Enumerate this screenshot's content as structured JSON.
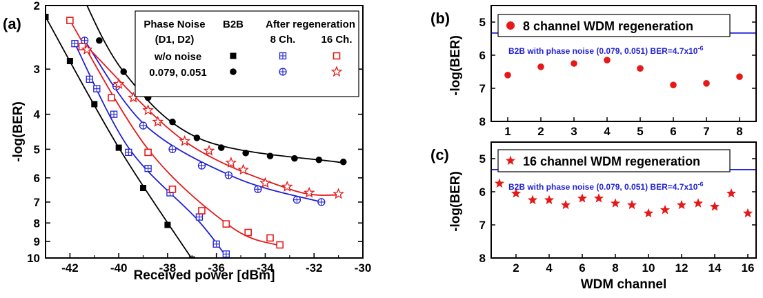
{
  "chart_data": [
    {
      "panel": "(a)",
      "type": "line",
      "xlabel": "Received power [dBm]",
      "ylabel": "-log(BER)",
      "xlim": [
        -43,
        -30
      ],
      "ylim": [
        2,
        10
      ],
      "yscale": "-log(-log)",
      "xticks": [
        "-42",
        "-40",
        "-38",
        "-36",
        "-34",
        "-32",
        "-30"
      ],
      "yticks": [
        "2",
        "3",
        "4",
        "5",
        "6",
        "7",
        "8",
        "9",
        "10"
      ],
      "legend": {
        "header_col1": "Phase Noise",
        "header_col1_sub": "(D1, D2)",
        "header_col2": "B2B",
        "header_col3": "After regeneration",
        "sub_col3a": "8 Ch.",
        "sub_col3b": "16 Ch.",
        "row1_label": "w/o noise",
        "row2_label": "0.079, 0.051"
      },
      "series": [
        {
          "key": "b2b_nonoise",
          "color": "#000000",
          "marker": "square",
          "x": [
            -43.0,
            -42.0,
            -41.0,
            -40.0,
            -39.0,
            -38.0,
            -37.0
          ],
          "y": [
            2.15,
            2.85,
            3.75,
            4.95,
            6.4,
            8.1,
            10.1
          ],
          "fit_x": [
            -43.0,
            -40.0,
            -36.9
          ],
          "fit_y": [
            2.15,
            4.95,
            10.3
          ]
        },
        {
          "key": "b2b_noise",
          "color": "#000000",
          "marker": "circle",
          "x": [
            -40.8,
            -39.8,
            -38.8,
            -37.8,
            -36.8,
            -35.8,
            -34.8,
            -33.8,
            -32.8,
            -31.8,
            -30.8
          ],
          "y": [
            2.5,
            3.05,
            3.6,
            4.2,
            4.65,
            4.95,
            5.12,
            5.22,
            5.3,
            5.35,
            5.42
          ],
          "fit_x": [
            -41.7,
            -39.8,
            -36.6,
            -30.9
          ],
          "fit_y": [
            1.75,
            3.05,
            4.7,
            5.44
          ]
        },
        {
          "key": "regen8_nonoise",
          "color": "#1f1fd6",
          "marker": "squareplus",
          "x": [
            -41.8,
            -41.2,
            -40.9,
            -40.2,
            -39.6,
            -38.8,
            -37.9,
            -36.7,
            -36.0,
            -35.6
          ],
          "y": [
            2.55,
            3.2,
            3.4,
            4.0,
            5.1,
            5.65,
            6.6,
            7.7,
            9.15,
            9.75
          ],
          "fit_x": [
            -41.8,
            -39.6,
            -36.8,
            -35.6
          ],
          "fit_y": [
            2.55,
            4.95,
            7.8,
            9.9
          ]
        },
        {
          "key": "regen8_noise",
          "color": "#1f1fd6",
          "marker": "circleplus",
          "x": [
            -41.4,
            -40.1,
            -39.0,
            -37.8,
            -36.6,
            -35.5,
            -34.3,
            -32.7,
            -31.7
          ],
          "y": [
            2.5,
            3.35,
            4.3,
            5.0,
            5.55,
            5.9,
            6.45,
            6.9,
            7.0
          ],
          "fit_x": [
            -41.4,
            -38.9,
            -35.2,
            -31.7
          ],
          "fit_y": [
            2.5,
            4.3,
            6.0,
            7.0
          ]
        },
        {
          "key": "regen16_nonoise",
          "color": "#e61919",
          "marker": "squareopen",
          "x": [
            -42.0,
            -41.5,
            -40.3,
            -38.8,
            -37.8,
            -36.6,
            -35.6,
            -34.7,
            -33.8,
            -33.4
          ],
          "y": [
            2.2,
            2.6,
            3.6,
            5.1,
            6.45,
            7.4,
            8.05,
            8.5,
            8.8,
            9.2
          ],
          "fit_x": [
            -42.0,
            -38.8,
            -35.4,
            -33.4
          ],
          "fit_y": [
            2.2,
            5.0,
            8.2,
            9.25
          ]
        },
        {
          "key": "regen16_noise",
          "color": "#e61919",
          "marker": "star",
          "x": [
            -41.3,
            -40.0,
            -39.4,
            -38.8,
            -38.4,
            -37.3,
            -36.3,
            -35.4,
            -34.9,
            -34.0,
            -33.1,
            -32.2,
            -31.0
          ],
          "y": [
            2.65,
            3.3,
            3.6,
            3.9,
            4.2,
            4.75,
            5.05,
            5.45,
            5.7,
            6.2,
            6.35,
            6.6,
            6.65
          ],
          "fit_x": [
            -41.3,
            -37.3,
            -33.0,
            -31.0
          ],
          "fit_y": [
            2.6,
            4.75,
            6.45,
            6.7
          ]
        }
      ]
    },
    {
      "panel": "(b)",
      "type": "scatter",
      "ylabel": "-log(BER)",
      "xlim": [
        0.5,
        8.5
      ],
      "ylim": [
        4.5,
        8
      ],
      "xticks": [
        "1",
        "2",
        "3",
        "4",
        "5",
        "6",
        "7",
        "8"
      ],
      "yticks": [
        "5",
        "6",
        "7",
        "8"
      ],
      "legend": "8 channel WDM regeneration",
      "reference_label": "B2B with phase noise (0.079, 0.051) BER=4.7x10",
      "reference_exp": "-6",
      "reference_y": 5.33,
      "color": "#e61919",
      "marker": "circle",
      "x": [
        1,
        2,
        3,
        4,
        5,
        6,
        7,
        8
      ],
      "y": [
        6.6,
        6.35,
        6.25,
        6.15,
        6.4,
        6.9,
        6.85,
        6.65
      ]
    },
    {
      "panel": "(c)",
      "type": "scatter",
      "ylabel": "-log(BER)",
      "xlabel": "WDM channel",
      "xlim": [
        0.5,
        16.5
      ],
      "ylim": [
        4.5,
        8
      ],
      "xticks": [
        "2",
        "4",
        "6",
        "8",
        "10",
        "12",
        "14",
        "16"
      ],
      "yticks": [
        "5",
        "6",
        "7",
        "8"
      ],
      "legend": "16 channel WDM regeneration",
      "reference_label": "B2B with phase noise (0.079, 0.051) BER=4.7x10",
      "reference_exp": "-6",
      "reference_y": 5.33,
      "color": "#e61919",
      "marker": "star",
      "x": [
        1,
        2,
        3,
        4,
        5,
        6,
        7,
        8,
        9,
        10,
        11,
        12,
        13,
        14,
        15,
        16
      ],
      "y": [
        5.75,
        6.05,
        6.25,
        6.25,
        6.4,
        6.2,
        6.2,
        6.35,
        6.4,
        6.65,
        6.55,
        6.4,
        6.35,
        6.45,
        6.05,
        6.65
      ]
    }
  ]
}
